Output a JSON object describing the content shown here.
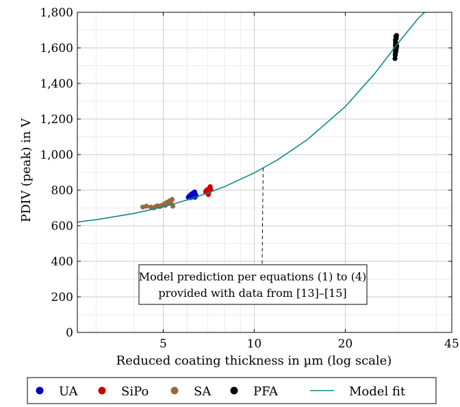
{
  "chart_data": {
    "type": "scatter",
    "xlabel": "Reduced coating thickness in µm (log scale)",
    "ylabel": "PDIV (peak) in V",
    "xscale": "log",
    "xlim": [
      2.6,
      45
    ],
    "ylim": [
      0,
      1800
    ],
    "xticks": [
      5,
      10,
      20,
      45
    ],
    "xtick_labels": [
      "5",
      "10",
      "20",
      "45"
    ],
    "yticks": [
      0,
      200,
      400,
      600,
      800,
      1000,
      1200,
      1400,
      1600,
      1800
    ],
    "ytick_labels": [
      "0",
      "200",
      "400",
      "600",
      "800",
      "1,000",
      "1,200",
      "1,400",
      "1,600",
      "1,800"
    ],
    "grid": true,
    "legend_position": "bottom",
    "series": [
      {
        "name": "UA",
        "color": "#0000cc",
        "marker": "circle",
        "points": [
          [
            6.05,
            760
          ],
          [
            6.1,
            765
          ],
          [
            6.12,
            770
          ],
          [
            6.15,
            758
          ],
          [
            6.18,
            775
          ],
          [
            6.2,
            768
          ],
          [
            6.22,
            780
          ],
          [
            6.25,
            762
          ],
          [
            6.28,
            772
          ],
          [
            6.3,
            785
          ],
          [
            6.32,
            770
          ],
          [
            6.35,
            790
          ],
          [
            6.36,
            760
          ],
          [
            6.4,
            775
          ],
          [
            6.42,
            768
          ]
        ]
      },
      {
        "name": "SiPo",
        "color": "#cc0000",
        "marker": "circle",
        "points": [
          [
            6.9,
            790
          ],
          [
            6.95,
            800
          ],
          [
            7.0,
            785
          ],
          [
            7.0,
            795
          ],
          [
            7.03,
            805
          ],
          [
            7.05,
            775
          ],
          [
            7.08,
            790
          ],
          [
            7.1,
            810
          ],
          [
            7.12,
            798
          ],
          [
            7.15,
            820
          ],
          [
            7.18,
            805
          ]
        ]
      },
      {
        "name": "SA",
        "color": "#9a6a3a",
        "marker": "circle",
        "points": [
          [
            4.28,
            705
          ],
          [
            4.4,
            710
          ],
          [
            4.55,
            705
          ],
          [
            4.65,
            700
          ],
          [
            4.72,
            708
          ],
          [
            4.8,
            712
          ],
          [
            4.88,
            708
          ],
          [
            4.95,
            715
          ],
          [
            5.0,
            718
          ],
          [
            5.05,
            722
          ],
          [
            5.08,
            715
          ],
          [
            5.12,
            728
          ],
          [
            5.15,
            732
          ],
          [
            5.2,
            725
          ],
          [
            5.25,
            740
          ],
          [
            5.3,
            735
          ],
          [
            5.35,
            748
          ],
          [
            5.38,
            710
          ]
        ]
      },
      {
        "name": "PFA",
        "color": "#000000",
        "marker": "circle",
        "points": [
          [
            29.2,
            1540
          ],
          [
            29.25,
            1560
          ],
          [
            29.3,
            1575
          ],
          [
            29.22,
            1590
          ],
          [
            29.35,
            1600
          ],
          [
            29.28,
            1615
          ],
          [
            29.4,
            1580
          ],
          [
            29.32,
            1630
          ],
          [
            29.45,
            1620
          ],
          [
            29.3,
            1645
          ],
          [
            29.5,
            1655
          ],
          [
            29.38,
            1665
          ],
          [
            29.55,
            1670
          ],
          [
            29.26,
            1565
          ],
          [
            29.48,
            1595
          ],
          [
            29.6,
            1610
          ]
        ]
      },
      {
        "name": "Model fit",
        "color": "#0a8a8a",
        "type": "line",
        "points": [
          [
            2.6,
            621
          ],
          [
            3,
            634
          ],
          [
            4,
            669
          ],
          [
            5,
            706
          ],
          [
            6,
            745
          ],
          [
            7,
            783
          ],
          [
            8,
            821
          ],
          [
            10,
            897
          ],
          [
            12,
            973
          ],
          [
            15,
            1085
          ],
          [
            20,
            1270
          ],
          [
            25,
            1455
          ],
          [
            30,
            1630
          ],
          [
            35,
            1770
          ],
          [
            40,
            1860
          ]
        ]
      }
    ],
    "annotation": {
      "lines": [
        "Model prediction per equations (1) to (4)",
        "provided with data from [13]–[15]"
      ],
      "points_to": [
        10.7,
        925
      ]
    }
  }
}
